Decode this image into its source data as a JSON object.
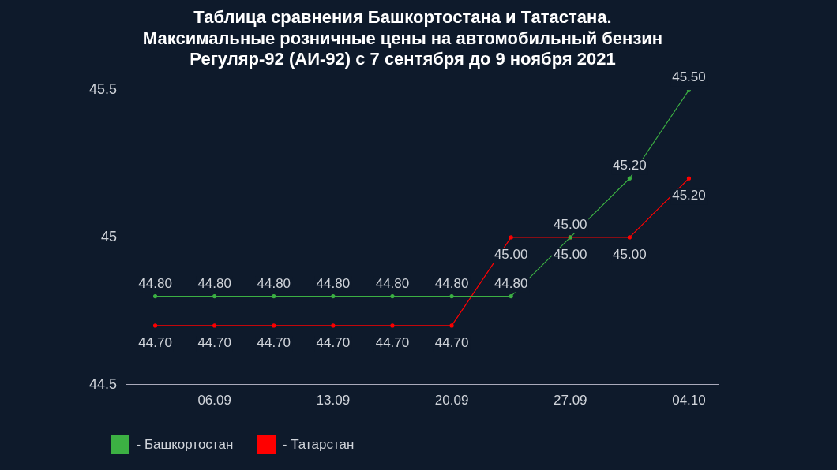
{
  "chart_data": {
    "type": "line",
    "title": "Таблица сравнения Башкортостана и Татастана.\nМаксимальные розничные цены на автомобильный бензин\nРегуляр-92 (АИ-92) с 7 сентября до 9 ноября 2021",
    "categories": [
      null,
      "06.09",
      null,
      "13.09",
      null,
      "20.09",
      null,
      "27.09",
      null,
      "04.10"
    ],
    "series": [
      {
        "name": "- Башкортостан",
        "color": "#3cb043",
        "values": [
          44.8,
          44.8,
          44.8,
          44.8,
          44.8,
          44.8,
          44.8,
          45.0,
          45.2,
          45.5
        ],
        "value_labels": [
          "44.80",
          "44.80",
          "44.80",
          "44.80",
          "44.80",
          "44.80",
          "44.80",
          "45.00",
          "45.20",
          "45.50"
        ]
      },
      {
        "name": "- Татарстан",
        "color": "#ff0000",
        "values": [
          44.7,
          44.7,
          44.7,
          44.7,
          44.7,
          44.7,
          45.0,
          45.0,
          45.0,
          45.2
        ],
        "value_labels": [
          "44.70",
          "44.70",
          "44.70",
          "44.70",
          "44.70",
          "44.70",
          "45.00",
          "45.00",
          "45.00",
          "45.20"
        ]
      }
    ],
    "ylim": [
      44.5,
      45.5
    ],
    "yticks": [
      44.5,
      45,
      45.5
    ],
    "grid": false,
    "legend": "bottom left",
    "marker": "circle",
    "line_style": "solid"
  }
}
